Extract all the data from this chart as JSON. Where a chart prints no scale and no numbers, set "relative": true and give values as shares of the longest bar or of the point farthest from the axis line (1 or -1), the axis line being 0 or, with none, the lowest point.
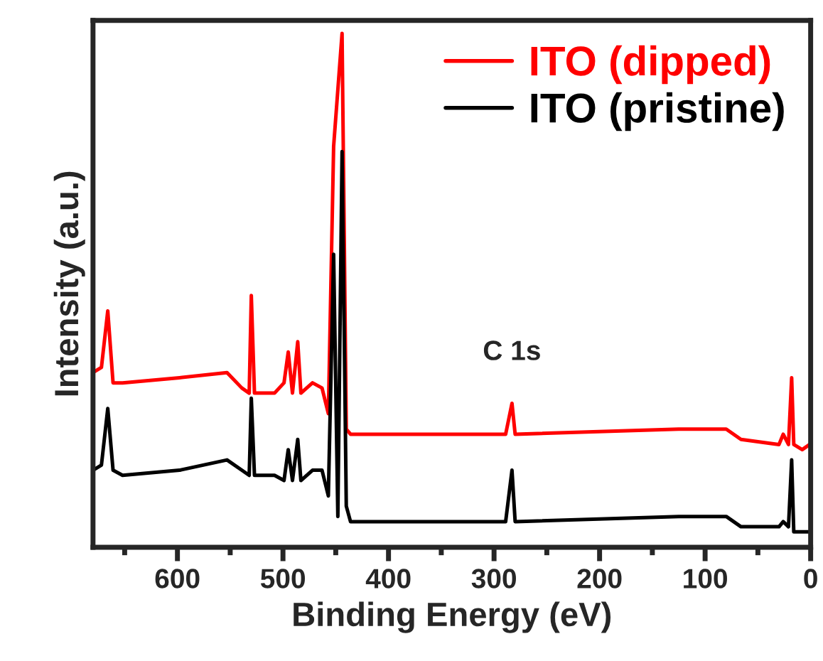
{
  "chart_data": {
    "type": "line",
    "relative": true,
    "xlabel": "Binding Energy (eV)",
    "ylabel": "Intensity (a.u.)",
    "xlim": [
      680,
      0
    ],
    "xticks": [
      {
        "value": 650,
        "label": null
      },
      600,
      {
        "value": 550,
        "label": null
      },
      500,
      {
        "value": 450,
        "label": null
      },
      400,
      {
        "value": 350,
        "label": null
      },
      300,
      {
        "value": 250,
        "label": null
      },
      200,
      {
        "value": 150,
        "label": null
      },
      100,
      {
        "value": 50,
        "label": null
      },
      0
    ],
    "x": [
      680,
      672,
      666,
      661,
      652,
      598,
      553,
      539,
      532,
      530,
      527,
      508,
      499,
      495,
      491,
      486,
      483,
      472,
      463,
      457,
      452,
      448,
      444,
      440,
      436,
      350,
      289,
      283,
      280,
      125,
      80,
      66,
      30,
      26,
      21,
      18,
      16,
      8,
      1
    ],
    "series": [
      {
        "name": "ITO (dipped)",
        "color": "#ff0000",
        "values": [
          0.34,
          0.35,
          0.46,
          0.32,
          0.32,
          0.33,
          0.34,
          0.31,
          0.3,
          0.49,
          0.3,
          0.3,
          0.32,
          0.38,
          0.3,
          0.4,
          0.3,
          0.32,
          0.31,
          0.26,
          0.78,
          null,
          1.0,
          0.23,
          0.22,
          0.22,
          0.22,
          0.28,
          0.22,
          0.23,
          0.23,
          0.21,
          0.2,
          0.22,
          0.2,
          0.33,
          0.2,
          0.19,
          0.2
        ]
      },
      {
        "name": "ITO (pristine)",
        "color": "#000000",
        "values": [
          0.15,
          0.16,
          0.27,
          0.15,
          0.14,
          0.15,
          0.17,
          0.15,
          0.14,
          0.29,
          0.14,
          0.14,
          0.13,
          0.19,
          0.13,
          0.21,
          0.13,
          0.15,
          0.15,
          0.1,
          0.57,
          0.06,
          0.77,
          0.08,
          0.05,
          0.05,
          0.05,
          0.15,
          0.05,
          0.06,
          0.06,
          0.04,
          0.04,
          0.05,
          0.04,
          0.17,
          0.03,
          0.03,
          0.03
        ]
      }
    ],
    "annotations": [
      {
        "text": "C 1s",
        "x": 283,
        "y": 0.28
      }
    ],
    "legend": "top right",
    "grid": false
  }
}
